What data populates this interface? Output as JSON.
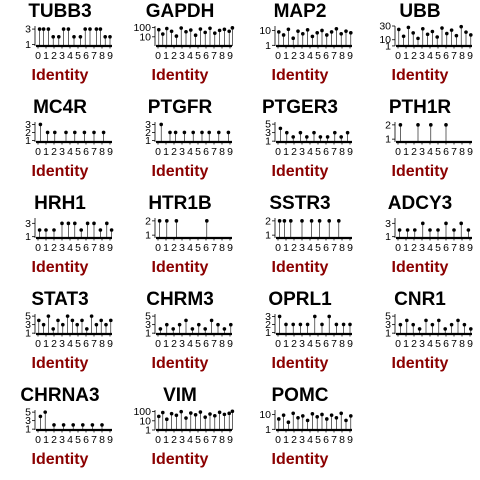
{
  "colors": {
    "title": "#000000",
    "xlabel": "#8b0000",
    "marks": "#000000"
  },
  "chart_data": [
    {
      "type": "scatter",
      "title": "TUBB3",
      "xlabel": "Identity",
      "x_ticks": [
        "0",
        "1",
        "2",
        "3",
        "4",
        "5",
        "6",
        "7",
        "8",
        "9"
      ],
      "y_ticks": [
        "1",
        "3"
      ],
      "ylim": [
        0.8,
        3.4
      ],
      "x": [
        0.2,
        0.7,
        1.3,
        1.9,
        2.6,
        3.2,
        3.8,
        4.5,
        5.3,
        5.9,
        6.5,
        7.3,
        7.8,
        8.4,
        9.0
      ],
      "y": [
        3,
        3,
        3,
        2,
        2,
        3,
        3,
        2,
        2,
        3,
        3,
        3,
        3,
        2,
        2
      ]
    },
    {
      "type": "scatter",
      "title": "GAPDH",
      "xlabel": "Identity",
      "x_ticks": [
        "0",
        "1",
        "2",
        "3",
        "4",
        "5",
        "6",
        "7",
        "8",
        "9"
      ],
      "y_ticks": [
        "10",
        "100"
      ],
      "ylim": [
        1,
        150
      ],
      "log_y": true,
      "x": [
        0.1,
        0.6,
        1.1,
        1.7,
        2.3,
        2.9,
        3.5,
        4.1,
        4.7,
        5.3,
        5.9,
        6.5,
        7.1,
        7.7,
        8.3,
        8.9,
        9.3
      ],
      "y": [
        60,
        20,
        80,
        40,
        12,
        90,
        35,
        55,
        15,
        70,
        30,
        85,
        25,
        50,
        65,
        40,
        95
      ]
    },
    {
      "type": "scatter",
      "title": "MAP2",
      "xlabel": "Identity",
      "x_ticks": [
        "0",
        "1",
        "2",
        "3",
        "4",
        "5",
        "6",
        "7",
        "8",
        "9"
      ],
      "y_ticks": [
        "1",
        "10"
      ],
      "ylim": [
        0.9,
        20
      ],
      "log_y": true,
      "x": [
        0.1,
        0.7,
        1.3,
        1.9,
        2.5,
        3.1,
        3.7,
        4.3,
        4.9,
        5.5,
        6.1,
        6.7,
        7.3,
        7.9,
        8.5,
        9.1
      ],
      "y": [
        8,
        5,
        12,
        3,
        9,
        6,
        11,
        4,
        7,
        10,
        5,
        8,
        13,
        6,
        9,
        7
      ]
    },
    {
      "type": "scatter",
      "title": "UBB",
      "xlabel": "Identity",
      "x_ticks": [
        "0",
        "1",
        "2",
        "3",
        "4",
        "5",
        "6",
        "7",
        "8",
        "9"
      ],
      "y_ticks": [
        "1",
        "10",
        "30"
      ],
      "ylim": [
        0.9,
        30
      ],
      "x": [
        0.1,
        0.7,
        1.3,
        1.9,
        2.5,
        3.1,
        3.7,
        4.3,
        4.9,
        5.5,
        6.1,
        6.7,
        7.3,
        7.9,
        8.5,
        9.1
      ],
      "y": [
        25,
        15,
        28,
        20,
        12,
        26,
        18,
        22,
        14,
        27,
        19,
        24,
        16,
        29,
        21,
        17
      ]
    },
    {
      "type": "scatter",
      "title": "MC4R",
      "xlabel": "Identity",
      "x_ticks": [
        "0",
        "1",
        "2",
        "3",
        "4",
        "5",
        "6",
        "7",
        "8",
        "9"
      ],
      "y_ticks": [
        "1",
        "2",
        "3"
      ],
      "ylim": [
        0.8,
        3.3
      ],
      "x": [
        0.3,
        1.2,
        2.1,
        3.5,
        4.6,
        5.8,
        7.0,
        8.2
      ],
      "y": [
        3,
        2,
        2,
        2,
        2,
        2,
        2,
        2
      ]
    },
    {
      "type": "scatter",
      "title": "PTGFR",
      "xlabel": "Identity",
      "x_ticks": [
        "0",
        "1",
        "2",
        "3",
        "4",
        "5",
        "6",
        "7",
        "8",
        "9"
      ],
      "y_ticks": [
        "1",
        "2",
        "3"
      ],
      "ylim": [
        0.8,
        3.3
      ],
      "x": [
        0.4,
        1.5,
        2.2,
        3.3,
        4.4,
        5.5,
        6.4,
        7.6,
        8.8
      ],
      "y": [
        3,
        2,
        2,
        2,
        2,
        2,
        2,
        2,
        2
      ]
    },
    {
      "type": "scatter",
      "title": "PTGER3",
      "xlabel": "Identity",
      "x_ticks": [
        "0",
        "1",
        "2",
        "3",
        "4",
        "5",
        "6",
        "7",
        "8",
        "9"
      ],
      "y_ticks": [
        "1",
        "3",
        "5"
      ],
      "ylim": [
        0.8,
        5.5
      ],
      "x": [
        0.3,
        1.1,
        1.9,
        2.8,
        3.6,
        4.5,
        5.3,
        6.2,
        7.1,
        7.9,
        8.7
      ],
      "y": [
        4,
        3,
        2,
        3,
        2,
        3,
        2,
        2,
        3,
        2,
        3
      ]
    },
    {
      "type": "scatter",
      "title": "PTH1R",
      "xlabel": "Identity",
      "x_ticks": [
        "0",
        "1",
        "2",
        "3",
        "4",
        "5",
        "6",
        "7",
        "8",
        "9"
      ],
      "y_ticks": [
        "1",
        "2"
      ],
      "ylim": [
        0.8,
        2.2
      ],
      "x": [
        0.3,
        2.5,
        4.1,
        6.0
      ],
      "y": [
        2,
        2,
        2,
        2
      ]
    },
    {
      "type": "scatter",
      "title": "HRH1",
      "xlabel": "Identity",
      "x_ticks": [
        "0",
        "1",
        "2",
        "3",
        "4",
        "5",
        "6",
        "7",
        "8",
        "9"
      ],
      "y_ticks": [
        "1",
        "3"
      ],
      "ylim": [
        0.8,
        3.8
      ],
      "x": [
        0.2,
        1.0,
        2.0,
        3.0,
        3.8,
        4.6,
        5.4,
        6.2,
        7.0,
        7.8,
        8.6,
        9.2
      ],
      "y": [
        2,
        2,
        2,
        3,
        3,
        3,
        2,
        3,
        3,
        2,
        3,
        2
      ]
    },
    {
      "type": "scatter",
      "title": "HTR1B",
      "xlabel": "Identity",
      "x_ticks": [
        "0",
        "1",
        "2",
        "3",
        "4",
        "5",
        "6",
        "7",
        "8",
        "9"
      ],
      "y_ticks": [
        "1",
        "2"
      ],
      "ylim": [
        0.8,
        2.2
      ],
      "x": [
        0.2,
        1.1,
        2.3,
        6.1
      ],
      "y": [
        2,
        2,
        2,
        2
      ]
    },
    {
      "type": "scatter",
      "title": "SSTR3",
      "xlabel": "Identity",
      "x_ticks": [
        "0",
        "1",
        "2",
        "3",
        "4",
        "5",
        "6",
        "7",
        "8",
        "9"
      ],
      "y_ticks": [
        "1",
        "2"
      ],
      "ylim": [
        0.8,
        2.2
      ],
      "x": [
        0.2,
        0.8,
        1.6,
        3.0,
        4.2,
        5.2,
        6.4,
        7.6
      ],
      "y": [
        2,
        2,
        2,
        2,
        2,
        2,
        2,
        2
      ]
    },
    {
      "type": "scatter",
      "title": "ADCY3",
      "xlabel": "Identity",
      "x_ticks": [
        "0",
        "1",
        "2",
        "3",
        "4",
        "5",
        "6",
        "7",
        "8",
        "9"
      ],
      "y_ticks": [
        "1",
        "3"
      ],
      "ylim": [
        0.8,
        3.8
      ],
      "x": [
        0.2,
        1.2,
        2.1,
        3.1,
        4.0,
        5.0,
        6.0,
        7.0,
        7.9,
        8.8
      ],
      "y": [
        2,
        2,
        2,
        3,
        2,
        2,
        3,
        2,
        3,
        2
      ]
    },
    {
      "type": "scatter",
      "title": "STAT3",
      "xlabel": "Identity",
      "x_ticks": [
        "0",
        "1",
        "2",
        "3",
        "4",
        "5",
        "6",
        "7",
        "8",
        "9"
      ],
      "y_ticks": [
        "1",
        "3",
        "5"
      ],
      "ylim": [
        0.8,
        5.5
      ],
      "x": [
        0.1,
        0.7,
        1.3,
        1.9,
        2.5,
        3.1,
        3.7,
        4.3,
        4.9,
        5.5,
        6.1,
        6.7,
        7.3,
        7.9,
        8.5,
        9.1
      ],
      "y": [
        4,
        3,
        5,
        2,
        4,
        3,
        5,
        4,
        3,
        4,
        2,
        5,
        3,
        4,
        3,
        4
      ]
    },
    {
      "type": "scatter",
      "title": "CHRM3",
      "xlabel": "Identity",
      "x_ticks": [
        "0",
        "1",
        "2",
        "3",
        "4",
        "5",
        "6",
        "7",
        "8",
        "9"
      ],
      "y_ticks": [
        "1",
        "3",
        "5"
      ],
      "ylim": [
        0.8,
        5.5
      ],
      "x": [
        0.3,
        1.1,
        1.9,
        2.7,
        3.5,
        4.3,
        5.1,
        5.9,
        6.7,
        7.5,
        8.3,
        9.1
      ],
      "y": [
        2,
        3,
        2,
        3,
        4,
        2,
        3,
        2,
        4,
        3,
        2,
        3
      ]
    },
    {
      "type": "scatter",
      "title": "OPRL1",
      "xlabel": "Identity",
      "x_ticks": [
        "0",
        "1",
        "2",
        "3",
        "4",
        "5",
        "6",
        "7",
        "8",
        "9"
      ],
      "y_ticks": [
        "1",
        "2",
        "3"
      ],
      "ylim": [
        0.8,
        3.3
      ],
      "x": [
        0.2,
        1.0,
        1.9,
        2.8,
        3.7,
        4.6,
        5.5,
        6.4,
        7.3,
        8.2,
        9.0
      ],
      "y": [
        3,
        2,
        2,
        2,
        2,
        3,
        2,
        3,
        2,
        2,
        2
      ]
    },
    {
      "type": "scatter",
      "title": "CNR1",
      "xlabel": "Identity",
      "x_ticks": [
        "0",
        "1",
        "2",
        "3",
        "4",
        "5",
        "6",
        "7",
        "8",
        "9"
      ],
      "y_ticks": [
        "1",
        "3",
        "5"
      ],
      "ylim": [
        0.8,
        5.5
      ],
      "x": [
        0.3,
        1.1,
        1.9,
        2.7,
        3.5,
        4.3,
        5.1,
        5.9,
        6.7,
        7.5,
        8.3,
        9.1
      ],
      "y": [
        3,
        4,
        3,
        2,
        4,
        3,
        4,
        2,
        3,
        4,
        3,
        2
      ]
    },
    {
      "type": "scatter",
      "title": "CHRNA3",
      "xlabel": "Identity",
      "x_ticks": [
        "0",
        "1",
        "2",
        "3",
        "4",
        "5",
        "6",
        "7",
        "8",
        "9"
      ],
      "y_ticks": [
        "1",
        "3",
        "5"
      ],
      "ylim": [
        0.8,
        5.5
      ],
      "x": [
        0.3,
        0.9,
        2.0,
        3.2,
        4.4,
        5.6,
        6.8,
        8.0
      ],
      "y": [
        4,
        5,
        2,
        2,
        2,
        2,
        2,
        2
      ]
    },
    {
      "type": "scatter",
      "title": "VIM",
      "xlabel": "Identity",
      "x_ticks": [
        "0",
        "1",
        "2",
        "3",
        "4",
        "5",
        "6",
        "7",
        "8",
        "9"
      ],
      "y_ticks": [
        "1",
        "10",
        "100"
      ],
      "ylim": [
        1,
        150
      ],
      "log_y": true,
      "x": [
        0.1,
        0.6,
        1.1,
        1.7,
        2.3,
        2.9,
        3.5,
        4.1,
        4.7,
        5.3,
        5.9,
        6.5,
        7.1,
        7.7,
        8.3,
        8.9,
        9.3
      ],
      "y": [
        30,
        80,
        15,
        60,
        40,
        100,
        20,
        70,
        45,
        90,
        25,
        55,
        35,
        85,
        50,
        65,
        110
      ]
    },
    {
      "type": "scatter",
      "title": "POMC",
      "xlabel": "Identity",
      "x_ticks": [
        "0",
        "1",
        "2",
        "3",
        "4",
        "5",
        "6",
        "7",
        "8",
        "9"
      ],
      "y_ticks": [
        "1",
        "10"
      ],
      "ylim": [
        0.9,
        20
      ],
      "log_y": true,
      "x": [
        0.1,
        0.7,
        1.3,
        1.9,
        2.5,
        3.1,
        3.7,
        4.3,
        4.9,
        5.5,
        6.1,
        6.7,
        7.3,
        7.9,
        8.5,
        9.1
      ],
      "y": [
        5,
        9,
        3,
        12,
        6,
        8,
        4,
        11,
        7,
        10,
        5,
        9,
        6,
        12,
        4,
        8
      ]
    }
  ]
}
